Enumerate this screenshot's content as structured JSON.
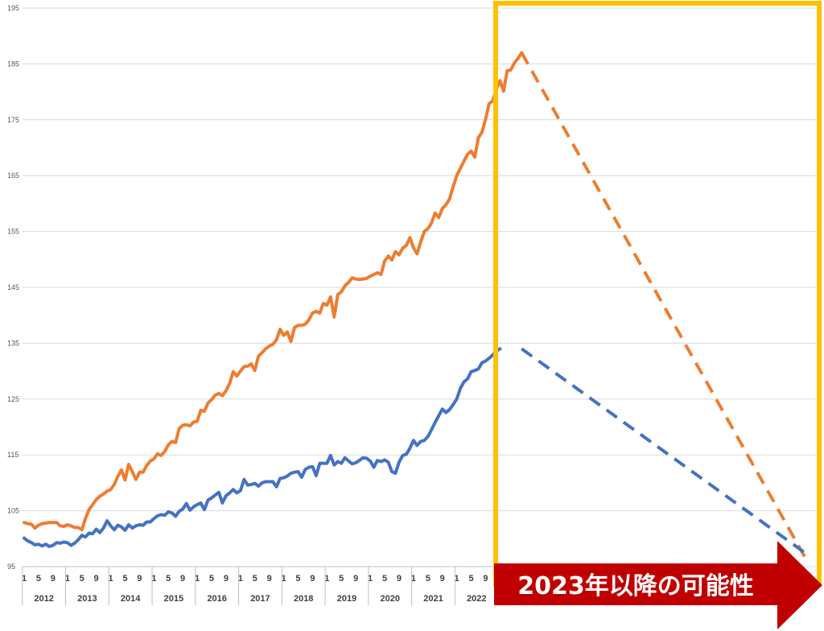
{
  "chart_data": {
    "type": "line",
    "ylim": [
      95,
      195
    ],
    "yticks": [
      "95",
      "105",
      "115",
      "125",
      "135",
      "145",
      "155",
      "165",
      "175",
      "185",
      "195"
    ],
    "grid": true,
    "month_tick_labels": [
      "1",
      "5",
      "9"
    ],
    "years": [
      "2012",
      "2013",
      "2014",
      "2015",
      "2016",
      "2017",
      "2018",
      "2019",
      "2020",
      "2021",
      "2022"
    ],
    "series": [
      {
        "color": "#ED7D31",
        "values": [
          102.9,
          102.7,
          102.6,
          101.9,
          102.4,
          102.7,
          102.8,
          102.9,
          102.9,
          102.9,
          102.3,
          102.2,
          102.5,
          102.3,
          102.0,
          102.0,
          101.6,
          103.6,
          105.2,
          106.1,
          107.0,
          107.6,
          108.0,
          108.5,
          108.8,
          109.7,
          111.2,
          112.3,
          110.5,
          113.3,
          112.0,
          110.6,
          111.9,
          111.9,
          113.1,
          113.9,
          114.3,
          115.2,
          114.9,
          115.6,
          116.8,
          117.4,
          117.2,
          119.7,
          120.3,
          120.4,
          120.2,
          120.9,
          121.0,
          123.0,
          122.8,
          124.3,
          124.9,
          125.7,
          126.0,
          125.6,
          126.5,
          127.8,
          129.9,
          129.1,
          130.0,
          130.8,
          130.9,
          131.3,
          130.1,
          132.7,
          133.3,
          134.0,
          134.5,
          134.8,
          135.6,
          137.5,
          136.4,
          137.0,
          135.3,
          137.8,
          138.2,
          138.2,
          138.4,
          139.2,
          140.4,
          140.7,
          140.4,
          142.1,
          141.8,
          143.3,
          139.7,
          143.7,
          144.2,
          145.3,
          145.9,
          146.7,
          146.5,
          146.4,
          146.5,
          146.6,
          147.0,
          147.3,
          147.6,
          147.3,
          149.7,
          150.6,
          149.9,
          151.4,
          150.8,
          152.0,
          152.5,
          153.9,
          152.1,
          151.0,
          153.1,
          155.0,
          155.5,
          156.5,
          158.3,
          157.5,
          159.1,
          159.8,
          160.8,
          163.0,
          165.0,
          166.3,
          167.6,
          168.8,
          169.4,
          168.3,
          171.8,
          172.8,
          175.1,
          177.9,
          178.4,
          180.5,
          182.0,
          180.1,
          183.8,
          183.9,
          185.2,
          186.0,
          187.0
        ]
      },
      {
        "color": "#4472C4",
        "values": [
          100.1,
          99.6,
          99.3,
          98.9,
          99.0,
          98.7,
          99.0,
          98.6,
          98.8,
          99.3,
          99.2,
          99.4,
          99.3,
          98.8,
          99.2,
          99.8,
          100.6,
          100.3,
          101.0,
          100.9,
          101.7,
          101.1,
          101.9,
          103.2,
          102.3,
          101.6,
          102.4,
          102.1,
          101.5,
          102.5,
          101.9,
          102.3,
          102.5,
          102.4,
          103.0,
          103.0,
          103.6,
          104.1,
          104.3,
          104.2,
          104.8,
          104.6,
          104.0,
          104.9,
          105.3,
          106.3,
          105.1,
          105.7,
          106.1,
          106.4,
          105.2,
          106.9,
          107.3,
          107.8,
          108.3,
          106.4,
          107.7,
          108.2,
          108.8,
          108.2,
          108.6,
          110.6,
          109.6,
          109.7,
          109.9,
          109.4,
          110.0,
          110.2,
          110.2,
          110.2,
          109.3,
          110.8,
          110.9,
          111.2,
          111.7,
          111.9,
          112.0,
          111.0,
          112.4,
          112.8,
          112.9,
          111.3,
          113.5,
          113.5,
          113.5,
          114.9,
          113.2,
          113.8,
          113.5,
          114.5,
          113.9,
          113.4,
          113.6,
          114.0,
          114.5,
          114.4,
          113.9,
          112.8,
          114.0,
          113.8,
          114.1,
          113.7,
          112.0,
          111.7,
          113.7,
          114.9,
          115.1,
          116.2,
          117.6,
          116.7,
          117.4,
          117.6,
          118.3,
          119.5,
          120.8,
          122.0,
          123.2,
          122.6,
          123.1,
          124.0,
          125.0,
          126.9,
          128.1,
          128.6,
          129.9,
          130.1,
          130.4,
          131.5,
          131.8,
          132.3,
          132.9,
          133.6,
          134.0
        ]
      }
    ],
    "projection": {
      "orange_end": 96.0,
      "blue_end": 97.2
    },
    "annotation": "2023年以降の可能性"
  },
  "colors": {
    "highlight_box": "#FFC000",
    "arrow": "#C00000",
    "grid": "#D9D9D9",
    "axis": "#BFBFBF"
  }
}
